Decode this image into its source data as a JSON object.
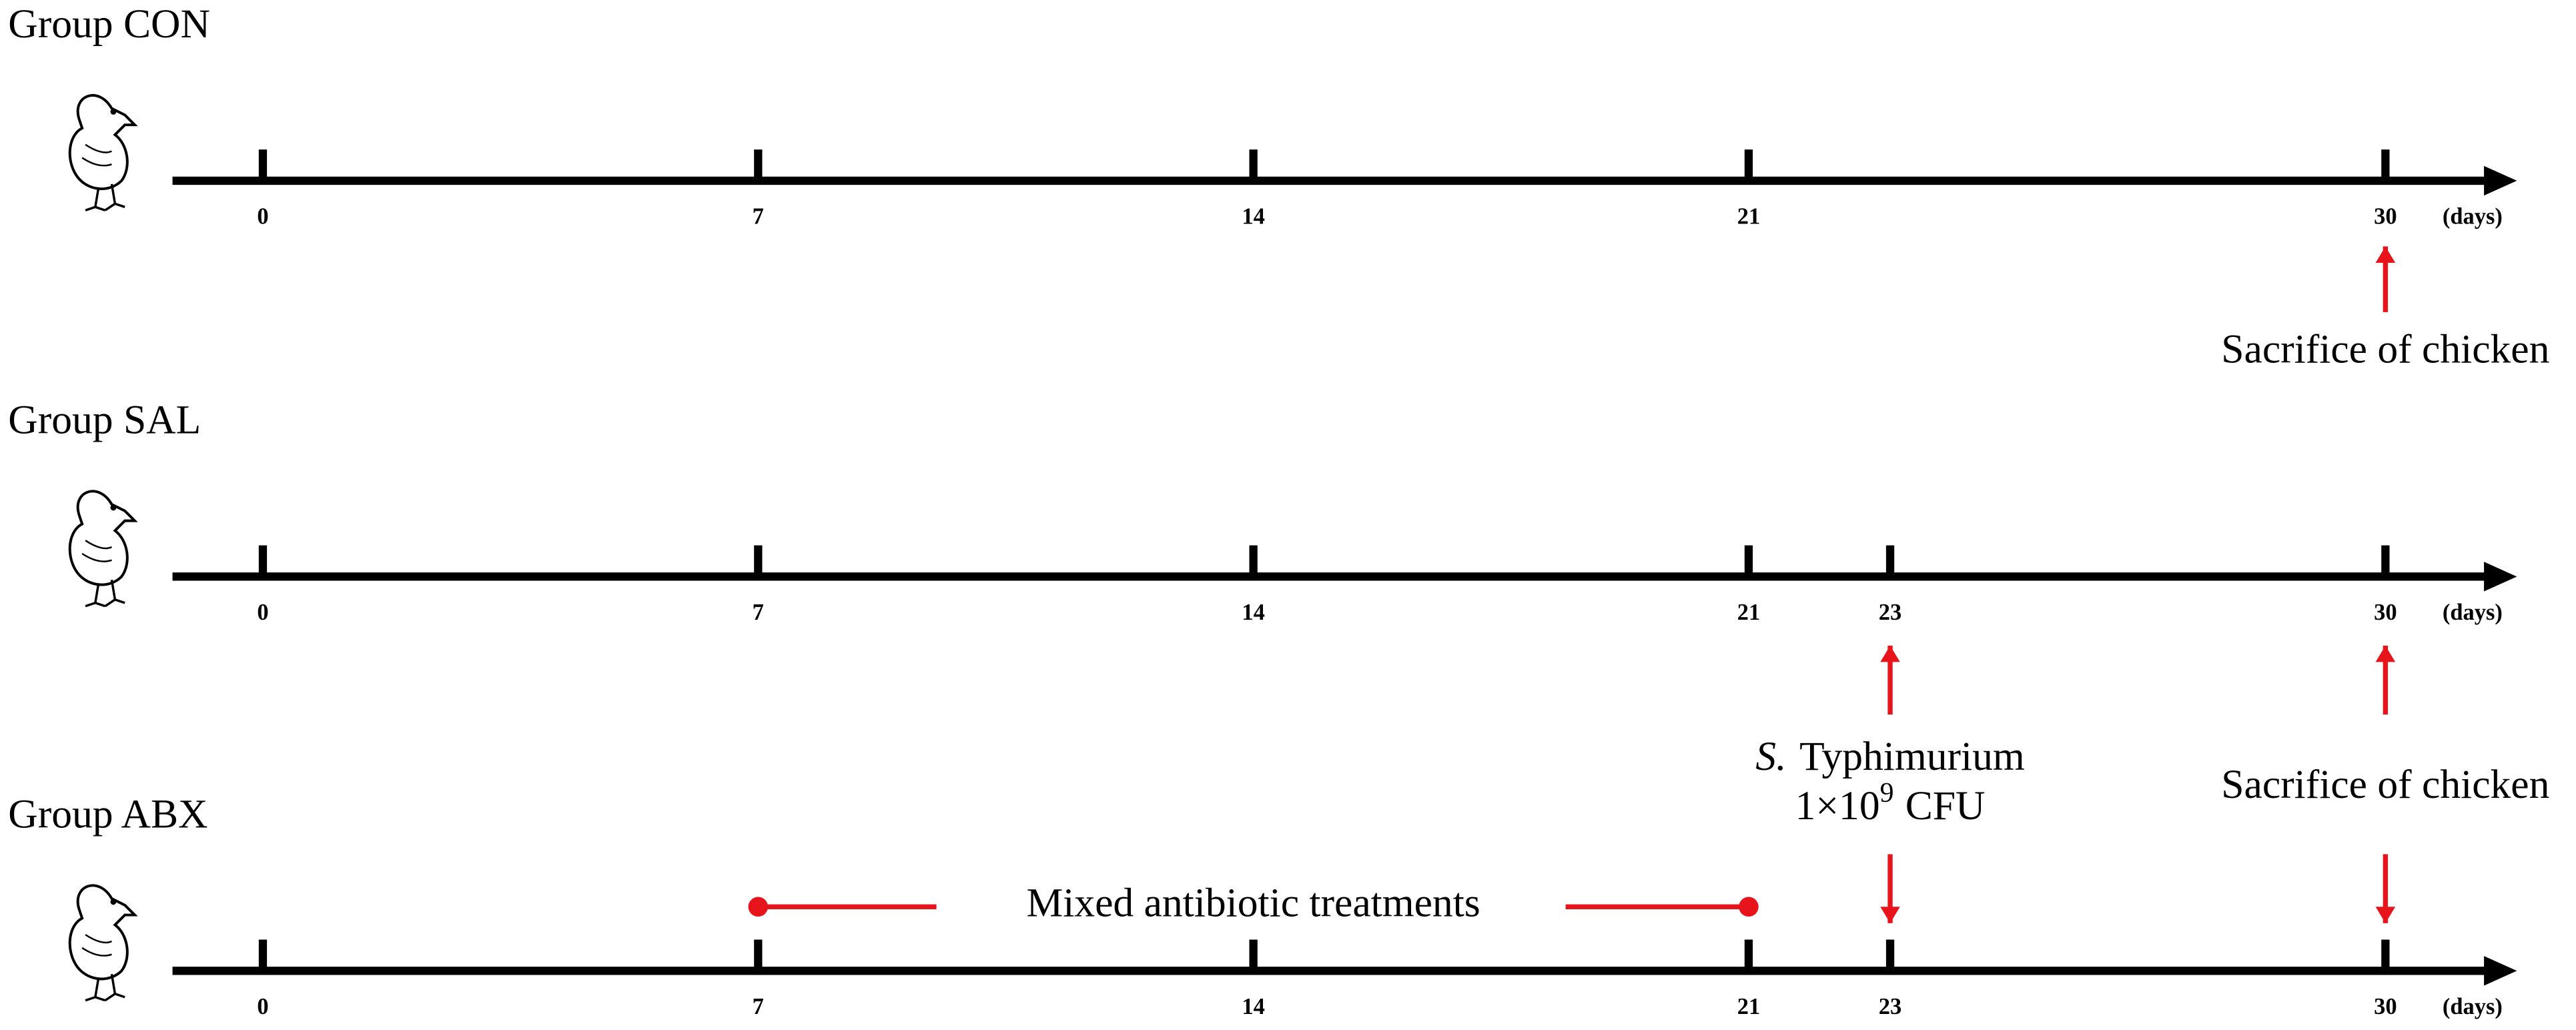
{
  "groups": [
    {
      "label": "Group CON",
      "ticks": [
        0,
        7,
        14,
        21,
        30
      ],
      "unit": "(days)"
    },
    {
      "label": "Group SAL",
      "ticks": [
        0,
        7,
        14,
        21,
        23,
        30
      ],
      "unit": "(days)"
    },
    {
      "label": "Group ABX",
      "ticks": [
        0,
        7,
        14,
        21,
        23,
        30
      ],
      "unit": "(days)"
    }
  ],
  "sacrifice_labels": [
    "Sacrifice of chicken",
    "Sacrifice of chicken"
  ],
  "infection": {
    "species_abbrev": "S.",
    "serovar": "Typhimurium",
    "dose_base": "1×10",
    "dose_exponent": "9",
    "dose_unit": "CFU"
  },
  "treatment": "Mixed antibiotic treatments"
}
